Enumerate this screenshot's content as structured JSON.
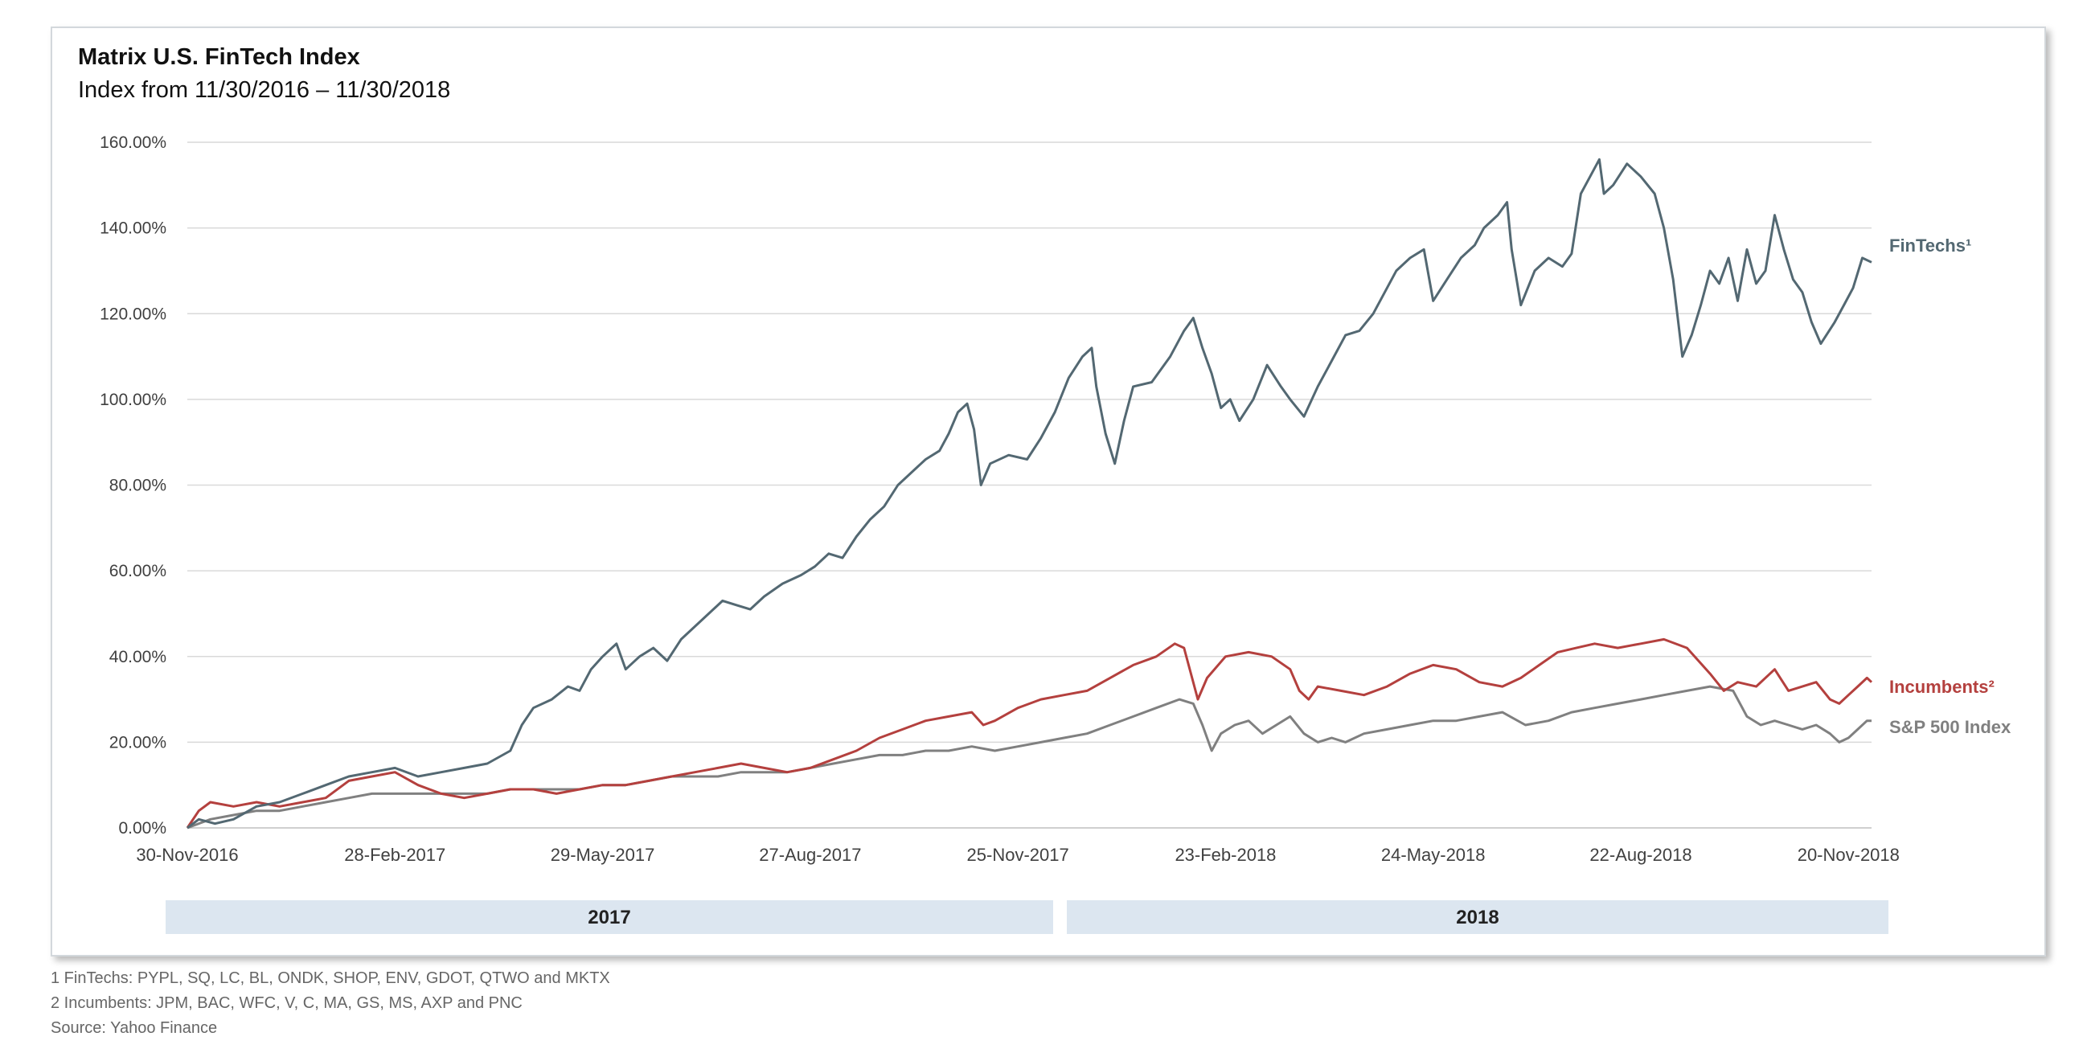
{
  "title": "Matrix U.S. FinTech Index",
  "subtitle": "Index from 11/30/2016 – 11/30/2018",
  "footnotes": [
    "1 FinTechs: PYPL, SQ, LC, BL, ONDK, SHOP, ENV, GDOT, QTWO and MKTX",
    "2 Incumbents: JPM, BAC, WFC, V, C, MA, GS, MS, AXP and PNC",
    "Source: Yahoo Finance"
  ],
  "year_bands": [
    "2017",
    "2018"
  ],
  "colors": {
    "fintech": "#536872",
    "incumbents": "#b4403e",
    "sp500": "#808080",
    "grid": "#d9d9d9",
    "band": "#dce6f0"
  },
  "chart_data": {
    "type": "line",
    "title": "Matrix U.S. FinTech Index",
    "subtitle": "Index from 11/30/2016 – 11/30/2018",
    "xlabel": "",
    "ylabel": "",
    "ylim": [
      0,
      160
    ],
    "yticks": [
      0,
      20,
      40,
      60,
      80,
      100,
      120,
      140,
      160
    ],
    "ytick_labels": [
      "0.00%",
      "20.00%",
      "40.00%",
      "60.00%",
      "80.00%",
      "100.00%",
      "120.00%",
      "140.00%",
      "160.00%"
    ],
    "x_unit": "days since 30-Nov-2016",
    "xlim": [
      0,
      730
    ],
    "xticks": [
      0,
      90,
      180,
      270,
      360,
      450,
      540,
      630,
      720
    ],
    "xtick_labels": [
      "30-Nov-2016",
      "28-Feb-2017",
      "29-May-2017",
      "27-Aug-2017",
      "25-Nov-2017",
      "23-Feb-2018",
      "24-May-2018",
      "22-Aug-2018",
      "20-Nov-2018"
    ],
    "grid": true,
    "series": [
      {
        "name": "FinTechs",
        "label": "FinTechs¹",
        "color": "#536872",
        "points": [
          [
            0,
            0
          ],
          [
            5,
            2
          ],
          [
            12,
            1
          ],
          [
            20,
            2
          ],
          [
            30,
            5
          ],
          [
            40,
            6
          ],
          [
            50,
            8
          ],
          [
            60,
            10
          ],
          [
            70,
            12
          ],
          [
            80,
            13
          ],
          [
            90,
            14
          ],
          [
            100,
            12
          ],
          [
            110,
            13
          ],
          [
            120,
            14
          ],
          [
            130,
            15
          ],
          [
            140,
            18
          ],
          [
            145,
            24
          ],
          [
            150,
            28
          ],
          [
            158,
            30
          ],
          [
            165,
            33
          ],
          [
            170,
            32
          ],
          [
            175,
            37
          ],
          [
            180,
            40
          ],
          [
            186,
            43
          ],
          [
            190,
            37
          ],
          [
            196,
            40
          ],
          [
            202,
            42
          ],
          [
            208,
            39
          ],
          [
            214,
            44
          ],
          [
            220,
            47
          ],
          [
            226,
            50
          ],
          [
            232,
            53
          ],
          [
            238,
            52
          ],
          [
            244,
            51
          ],
          [
            250,
            54
          ],
          [
            258,
            57
          ],
          [
            266,
            59
          ],
          [
            272,
            61
          ],
          [
            278,
            64
          ],
          [
            284,
            63
          ],
          [
            290,
            68
          ],
          [
            296,
            72
          ],
          [
            302,
            75
          ],
          [
            308,
            80
          ],
          [
            314,
            83
          ],
          [
            320,
            86
          ],
          [
            326,
            88
          ],
          [
            330,
            92
          ],
          [
            334,
            97
          ],
          [
            338,
            99
          ],
          [
            341,
            93
          ],
          [
            344,
            80
          ],
          [
            348,
            85
          ],
          [
            356,
            87
          ],
          [
            364,
            86
          ],
          [
            370,
            91
          ],
          [
            376,
            97
          ],
          [
            382,
            105
          ],
          [
            388,
            110
          ],
          [
            392,
            112
          ],
          [
            394,
            103
          ],
          [
            398,
            92
          ],
          [
            402,
            85
          ],
          [
            406,
            95
          ],
          [
            410,
            103
          ],
          [
            418,
            104
          ],
          [
            426,
            110
          ],
          [
            432,
            116
          ],
          [
            436,
            119
          ],
          [
            440,
            112
          ],
          [
            444,
            106
          ],
          [
            448,
            98
          ],
          [
            452,
            100
          ],
          [
            456,
            95
          ],
          [
            462,
            100
          ],
          [
            468,
            108
          ],
          [
            474,
            103
          ],
          [
            478,
            100
          ],
          [
            484,
            96
          ],
          [
            490,
            103
          ],
          [
            496,
            109
          ],
          [
            502,
            115
          ],
          [
            508,
            116
          ],
          [
            514,
            120
          ],
          [
            518,
            124
          ],
          [
            524,
            130
          ],
          [
            530,
            133
          ],
          [
            536,
            135
          ],
          [
            540,
            123
          ],
          [
            546,
            128
          ],
          [
            552,
            133
          ],
          [
            558,
            136
          ],
          [
            562,
            140
          ],
          [
            568,
            143
          ],
          [
            572,
            146
          ],
          [
            574,
            135
          ],
          [
            578,
            122
          ],
          [
            584,
            130
          ],
          [
            590,
            133
          ],
          [
            596,
            131
          ],
          [
            600,
            134
          ],
          [
            604,
            148
          ],
          [
            608,
            152
          ],
          [
            612,
            156
          ],
          [
            614,
            148
          ],
          [
            618,
            150
          ],
          [
            624,
            155
          ],
          [
            630,
            152
          ],
          [
            636,
            148
          ],
          [
            640,
            140
          ],
          [
            644,
            128
          ],
          [
            648,
            110
          ],
          [
            652,
            115
          ],
          [
            656,
            122
          ],
          [
            660,
            130
          ],
          [
            664,
            127
          ],
          [
            668,
            133
          ],
          [
            672,
            123
          ],
          [
            676,
            135
          ],
          [
            680,
            127
          ],
          [
            684,
            130
          ],
          [
            688,
            143
          ],
          [
            692,
            135
          ],
          [
            696,
            128
          ],
          [
            700,
            125
          ],
          [
            704,
            118
          ],
          [
            708,
            113
          ],
          [
            714,
            118
          ],
          [
            718,
            122
          ],
          [
            722,
            126
          ],
          [
            726,
            133
          ],
          [
            730,
            132
          ]
        ]
      },
      {
        "name": "Incumbents",
        "label": "Incumbents²",
        "color": "#b4403e",
        "points": [
          [
            0,
            0
          ],
          [
            5,
            4
          ],
          [
            10,
            6
          ],
          [
            20,
            5
          ],
          [
            30,
            6
          ],
          [
            40,
            5
          ],
          [
            50,
            6
          ],
          [
            60,
            7
          ],
          [
            70,
            11
          ],
          [
            80,
            12
          ],
          [
            90,
            13
          ],
          [
            100,
            10
          ],
          [
            110,
            8
          ],
          [
            120,
            7
          ],
          [
            130,
            8
          ],
          [
            140,
            9
          ],
          [
            150,
            9
          ],
          [
            160,
            8
          ],
          [
            170,
            9
          ],
          [
            180,
            10
          ],
          [
            190,
            10
          ],
          [
            200,
            11
          ],
          [
            210,
            12
          ],
          [
            220,
            13
          ],
          [
            230,
            14
          ],
          [
            240,
            15
          ],
          [
            250,
            14
          ],
          [
            260,
            13
          ],
          [
            270,
            14
          ],
          [
            280,
            16
          ],
          [
            290,
            18
          ],
          [
            300,
            21
          ],
          [
            310,
            23
          ],
          [
            320,
            25
          ],
          [
            330,
            26
          ],
          [
            340,
            27
          ],
          [
            345,
            24
          ],
          [
            350,
            25
          ],
          [
            360,
            28
          ],
          [
            370,
            30
          ],
          [
            380,
            31
          ],
          [
            390,
            32
          ],
          [
            400,
            35
          ],
          [
            410,
            38
          ],
          [
            420,
            40
          ],
          [
            428,
            43
          ],
          [
            432,
            42
          ],
          [
            435,
            36
          ],
          [
            438,
            30
          ],
          [
            442,
            35
          ],
          [
            450,
            40
          ],
          [
            460,
            41
          ],
          [
            470,
            40
          ],
          [
            478,
            37
          ],
          [
            482,
            32
          ],
          [
            486,
            30
          ],
          [
            490,
            33
          ],
          [
            500,
            32
          ],
          [
            510,
            31
          ],
          [
            520,
            33
          ],
          [
            530,
            36
          ],
          [
            540,
            38
          ],
          [
            550,
            37
          ],
          [
            560,
            34
          ],
          [
            570,
            33
          ],
          [
            578,
            35
          ],
          [
            586,
            38
          ],
          [
            594,
            41
          ],
          [
            602,
            42
          ],
          [
            610,
            43
          ],
          [
            620,
            42
          ],
          [
            630,
            43
          ],
          [
            640,
            44
          ],
          [
            650,
            42
          ],
          [
            660,
            36
          ],
          [
            666,
            32
          ],
          [
            672,
            34
          ],
          [
            680,
            33
          ],
          [
            688,
            37
          ],
          [
            694,
            32
          ],
          [
            700,
            33
          ],
          [
            706,
            34
          ],
          [
            712,
            30
          ],
          [
            716,
            29
          ],
          [
            720,
            31
          ],
          [
            724,
            33
          ],
          [
            728,
            35
          ],
          [
            730,
            34
          ]
        ]
      },
      {
        "name": "S&P 500 Index",
        "label": "S&P 500 Index",
        "color": "#808080",
        "points": [
          [
            0,
            0
          ],
          [
            10,
            2
          ],
          [
            20,
            3
          ],
          [
            30,
            4
          ],
          [
            40,
            4
          ],
          [
            50,
            5
          ],
          [
            60,
            6
          ],
          [
            70,
            7
          ],
          [
            80,
            8
          ],
          [
            90,
            8
          ],
          [
            100,
            8
          ],
          [
            110,
            8
          ],
          [
            120,
            8
          ],
          [
            130,
            8
          ],
          [
            140,
            9
          ],
          [
            150,
            9
          ],
          [
            160,
            9
          ],
          [
            170,
            9
          ],
          [
            180,
            10
          ],
          [
            190,
            10
          ],
          [
            200,
            11
          ],
          [
            210,
            12
          ],
          [
            220,
            12
          ],
          [
            230,
            12
          ],
          [
            240,
            13
          ],
          [
            250,
            13
          ],
          [
            260,
            13
          ],
          [
            270,
            14
          ],
          [
            280,
            15
          ],
          [
            290,
            16
          ],
          [
            300,
            17
          ],
          [
            310,
            17
          ],
          [
            320,
            18
          ],
          [
            330,
            18
          ],
          [
            340,
            19
          ],
          [
            350,
            18
          ],
          [
            360,
            19
          ],
          [
            370,
            20
          ],
          [
            380,
            21
          ],
          [
            390,
            22
          ],
          [
            400,
            24
          ],
          [
            410,
            26
          ],
          [
            420,
            28
          ],
          [
            430,
            30
          ],
          [
            436,
            29
          ],
          [
            440,
            24
          ],
          [
            444,
            18
          ],
          [
            448,
            22
          ],
          [
            454,
            24
          ],
          [
            460,
            25
          ],
          [
            466,
            22
          ],
          [
            472,
            24
          ],
          [
            478,
            26
          ],
          [
            484,
            22
          ],
          [
            490,
            20
          ],
          [
            496,
            21
          ],
          [
            502,
            20
          ],
          [
            510,
            22
          ],
          [
            520,
            23
          ],
          [
            530,
            24
          ],
          [
            540,
            25
          ],
          [
            550,
            25
          ],
          [
            560,
            26
          ],
          [
            570,
            27
          ],
          [
            580,
            24
          ],
          [
            590,
            25
          ],
          [
            600,
            27
          ],
          [
            610,
            28
          ],
          [
            620,
            29
          ],
          [
            630,
            30
          ],
          [
            640,
            31
          ],
          [
            650,
            32
          ],
          [
            660,
            33
          ],
          [
            670,
            32
          ],
          [
            676,
            26
          ],
          [
            682,
            24
          ],
          [
            688,
            25
          ],
          [
            694,
            24
          ],
          [
            700,
            23
          ],
          [
            706,
            24
          ],
          [
            712,
            22
          ],
          [
            716,
            20
          ],
          [
            720,
            21
          ],
          [
            724,
            23
          ],
          [
            728,
            25
          ],
          [
            730,
            25
          ]
        ]
      }
    ]
  }
}
